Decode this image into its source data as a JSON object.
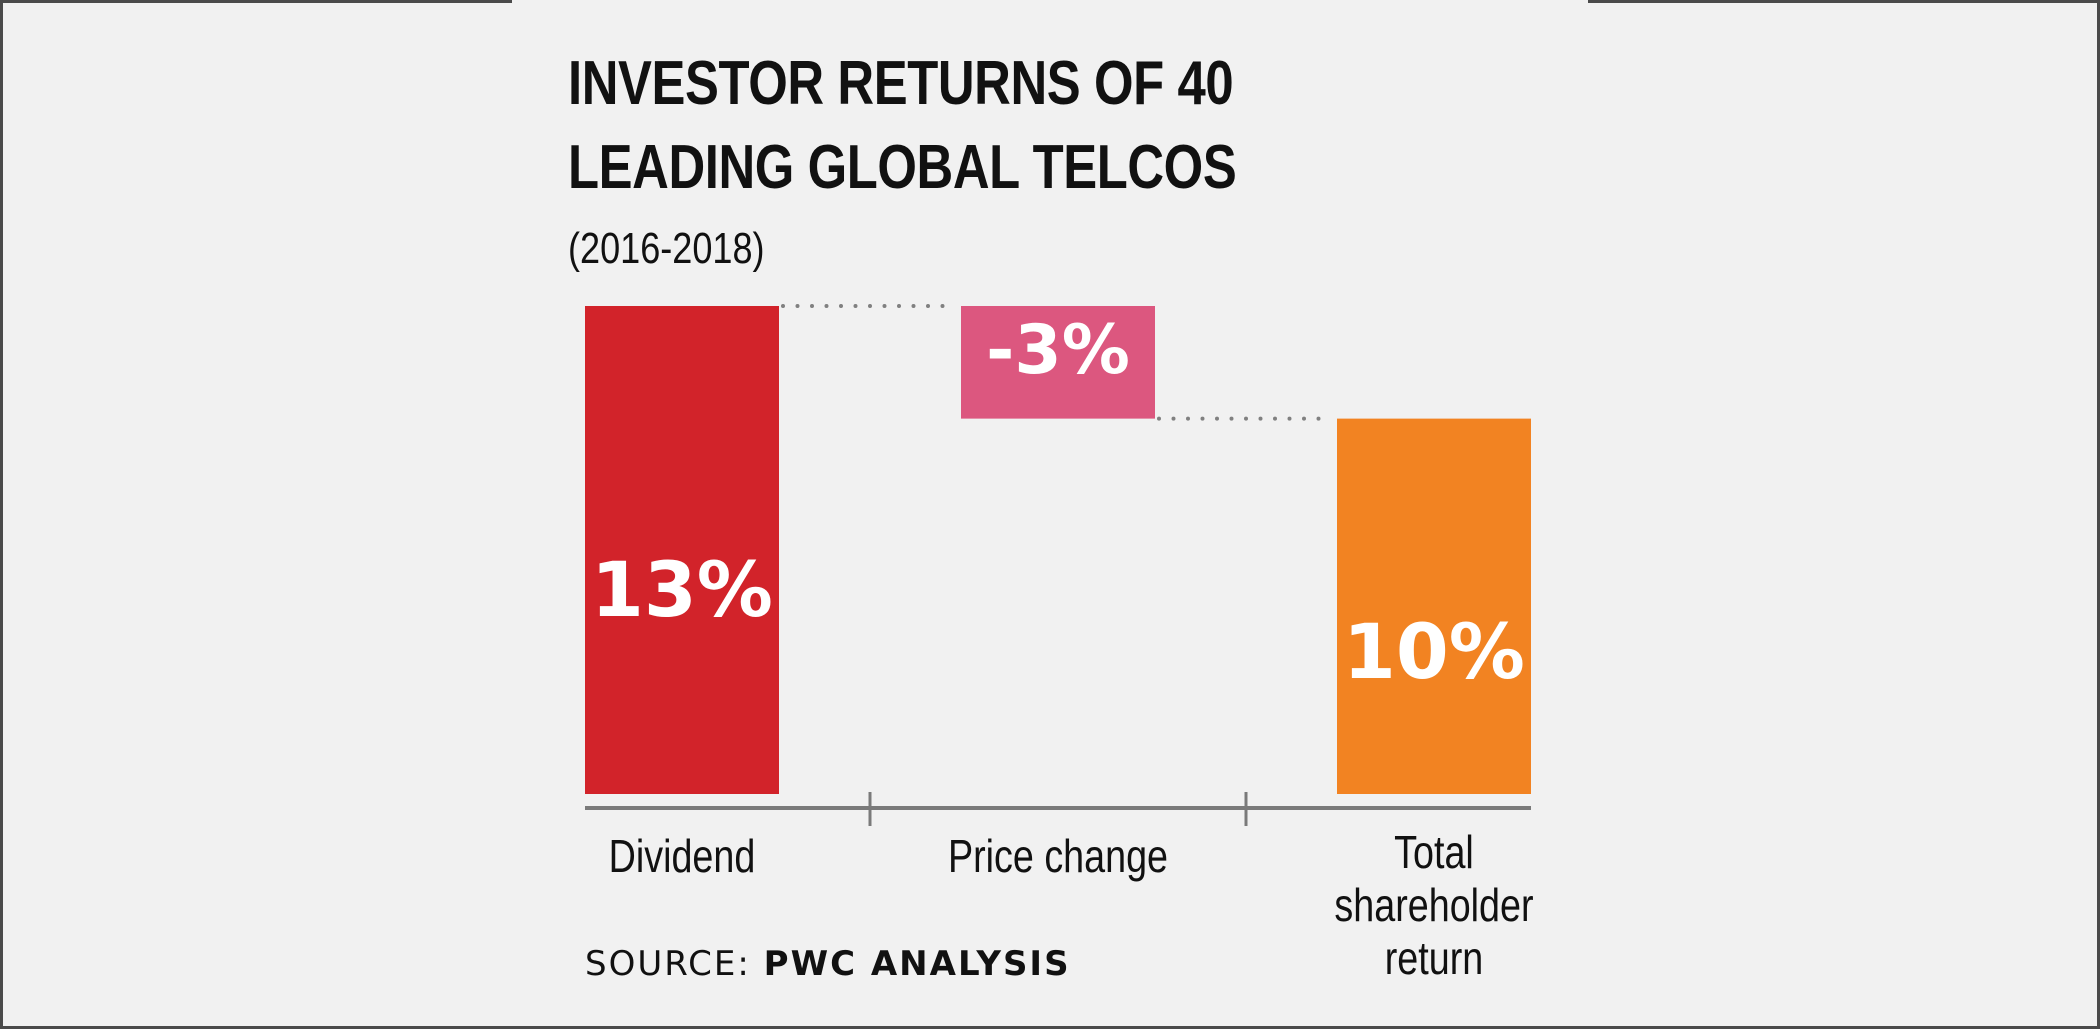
{
  "title_lines": [
    "INVESTOR RETURNS OF 40",
    "LEADING GLOBAL TELCOS"
  ],
  "subtitle": "(2016-2018)",
  "source": {
    "label": "SOURCE:",
    "value": "PWC ANALYSIS"
  },
  "chart_data": {
    "type": "bar",
    "subtype": "waterfall",
    "categories": [
      [
        "Dividend"
      ],
      [
        "Price change"
      ],
      [
        "Total",
        "shareholder",
        "return"
      ]
    ],
    "values": [
      13,
      -3,
      10
    ],
    "value_labels": [
      "13%",
      "-3%",
      "10%"
    ],
    "colors": [
      "#d2232a",
      "#dc577f",
      "#f28322"
    ],
    "ylim": [
      0,
      13
    ],
    "grid": false,
    "connectors": "dotted"
  }
}
